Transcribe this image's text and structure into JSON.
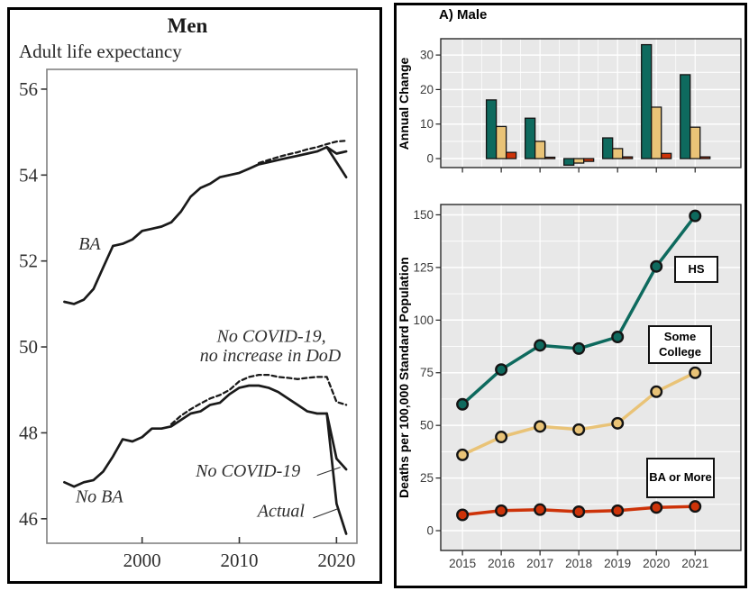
{
  "left_figure": {
    "title": "Men",
    "subtitle": "Adult life expectancy"
  },
  "right_figure": {
    "title": "A) Male",
    "top_chart": {
      "ylabel": "Annual Change"
    },
    "bottom_chart": {
      "ylabel": "Deaths per 100,000 Standard Population"
    },
    "labels": {
      "hs": "HS",
      "some_college": "Some College",
      "ba_more": "BA or More"
    }
  },
  "colors": {
    "hs": "#0e6a5e",
    "some_college": "#e9c377",
    "ba": "#cd3309",
    "panel_bg": "#e8e8e8",
    "grid": "#ffffff",
    "ink": "#1a1a1a"
  },
  "chart_data": [
    {
      "id": "adult-life-expectancy-men",
      "type": "line",
      "title": "Men",
      "subtitle": "Adult life expectancy",
      "xlim": [
        1990.2,
        2022.1
      ],
      "ylim": [
        45.43,
        56.46
      ],
      "yticks": [
        46,
        48,
        50,
        52,
        54,
        56
      ],
      "xticks": [
        2000,
        2010,
        2020
      ],
      "grid": false,
      "series": [
        {
          "name": "BA actual",
          "style": "solid",
          "x_start": 1992,
          "values": [
            51.05,
            51.0,
            51.1,
            51.35,
            51.85,
            52.35,
            52.4,
            52.5,
            52.7,
            52.75,
            52.8,
            52.9,
            53.15,
            53.5,
            53.7,
            53.8,
            53.95,
            54.0,
            54.05,
            54.15,
            54.25,
            54.3,
            54.35,
            54.4,
            54.45,
            54.5,
            54.55,
            54.65,
            54.3,
            53.95
          ]
        },
        {
          "name": "BA no COVID-19",
          "style": "solid",
          "x_start": 2019,
          "values": [
            54.65,
            54.5,
            54.55
          ]
        },
        {
          "name": "BA no COVID-19 no increase in DoD",
          "style": "dashed",
          "x_start": 2012,
          "values": [
            54.28,
            54.35,
            54.42,
            54.48,
            54.53,
            54.6,
            54.65,
            54.72,
            54.78,
            54.8
          ]
        },
        {
          "name": "No BA actual",
          "style": "solid",
          "x_start": 1992,
          "values": [
            46.85,
            46.75,
            46.85,
            46.9,
            47.1,
            47.45,
            47.85,
            47.8,
            47.9,
            48.1,
            48.1,
            48.15,
            48.3,
            48.45,
            48.5,
            48.65,
            48.7,
            48.9,
            49.05,
            49.1,
            49.1,
            49.05,
            48.95,
            48.8,
            48.65,
            48.5,
            48.45,
            48.45,
            46.35,
            45.65
          ]
        },
        {
          "name": "No BA no COVID-19",
          "style": "solid",
          "x_start": 2019,
          "values": [
            48.45,
            47.4,
            47.15
          ]
        },
        {
          "name": "No BA no COVID-19 no increase in DoD",
          "style": "dashed",
          "x_start": 2003,
          "values": [
            48.2,
            48.4,
            48.55,
            48.68,
            48.8,
            48.88,
            49.0,
            49.2,
            49.3,
            49.35,
            49.35,
            49.3,
            49.28,
            49.25,
            49.28,
            49.3,
            49.3,
            48.72,
            48.65
          ]
        }
      ],
      "annotations": [
        {
          "text": "BA",
          "x": 1994.6,
          "y": 52.27
        },
        {
          "text": "No BA",
          "x": 1995.6,
          "y": 46.38
        },
        {
          "text": "No COVID-19,",
          "x": 2013.3,
          "y": 50.12
        },
        {
          "text": "no increase in DoD",
          "x": 2013.2,
          "y": 49.67
        },
        {
          "text": "No COVID-19",
          "x": 2010.9,
          "y": 46.98
        },
        {
          "text": "Actual",
          "x": 2014.3,
          "y": 46.05
        }
      ],
      "leader_lines": [
        {
          "x1": 2018.0,
          "y1": 47.01,
          "x2": 2020.4,
          "y2": 47.2
        },
        {
          "x1": 2017.6,
          "y1": 46.02,
          "x2": 2020.1,
          "y2": 46.23
        }
      ]
    },
    {
      "id": "annual-change-male",
      "type": "bar",
      "title": "A) Male",
      "ylabel": "Annual Change",
      "categories": [
        2016,
        2017,
        2018,
        2019,
        2020,
        2021
      ],
      "series": [
        {
          "name": "HS",
          "color": "hs",
          "values": [
            17,
            11.7,
            -1.9,
            6,
            33,
            24.3
          ]
        },
        {
          "name": "Some College",
          "color": "some_college",
          "values": [
            9.3,
            5,
            -1.3,
            2.9,
            14.9,
            9.1
          ]
        },
        {
          "name": "BA or More",
          "color": "ba",
          "values": [
            1.8,
            0.4,
            -0.8,
            0.5,
            1.5,
            0.5
          ]
        }
      ],
      "yticks": [
        0,
        10,
        20,
        30
      ],
      "xticks": [
        2015,
        2016,
        2017,
        2018,
        2019,
        2020,
        2021
      ],
      "xtick_labels_shown": false,
      "xlim": [
        2014.44,
        2022.18
      ],
      "ylim": [
        -2.6,
        34.72
      ],
      "grid": true,
      "legend": false
    },
    {
      "id": "mortality-by-education-male",
      "type": "line",
      "ylabel": "Deaths per 100,000 Standard Population",
      "x": [
        2015,
        2016,
        2017,
        2018,
        2019,
        2020,
        2021
      ],
      "series": [
        {
          "name": "HS",
          "color": "hs",
          "values": [
            60,
            76.5,
            88,
            86.5,
            92,
            125.5,
            149.5
          ]
        },
        {
          "name": "Some College",
          "color": "some_college",
          "values": [
            36,
            44.5,
            49.5,
            48,
            51,
            66,
            75
          ]
        },
        {
          "name": "BA or More",
          "color": "ba",
          "values": [
            7.5,
            9.5,
            10,
            9,
            9.5,
            11,
            11.5
          ]
        }
      ],
      "yticks": [
        0,
        25,
        50,
        75,
        100,
        125,
        150
      ],
      "xticks": [
        2015,
        2016,
        2017,
        2018,
        2019,
        2020,
        2021
      ],
      "xlim": [
        2014.44,
        2022.18
      ],
      "ylim": [
        -9.4,
        154.9
      ],
      "grid": true,
      "legend": false
    }
  ]
}
